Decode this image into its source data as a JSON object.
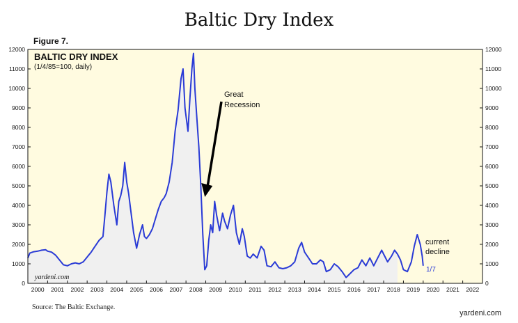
{
  "header": {
    "title": "Baltic Dry Index",
    "figure_label": "Figure 7."
  },
  "footer": {
    "source": "Source: The Baltic Exchange.",
    "brand": "yardeni.com"
  },
  "chart_data": {
    "type": "area",
    "title": "BALTIC DRY INDEX",
    "subtitle": "(1/4/85=100, daily)",
    "watermark": "yardeni.com",
    "ylim": [
      0,
      12000
    ],
    "yticks": [
      0,
      1000,
      2000,
      3000,
      4000,
      5000,
      6000,
      7000,
      8000,
      9000,
      10000,
      11000,
      12000
    ],
    "xlim": [
      2000,
      2023
    ],
    "xtick_labels": [
      "2000",
      "2001",
      "2002",
      "2003",
      "2004",
      "2005",
      "2006",
      "2007",
      "2008",
      "2009",
      "2010",
      "2011",
      "2012",
      "2013",
      "2014",
      "2015",
      "2016",
      "2017",
      "2018",
      "2019",
      "2020",
      "2021",
      "2022"
    ],
    "shaded_until_year": 2018.7,
    "colors": {
      "line": "#2a3bd6",
      "area_fill": "#f0f0f0",
      "background": "#fffbe0"
    },
    "series": [
      {
        "values": [
          [
            2000.0,
            1300
          ],
          [
            2000.1,
            1550
          ],
          [
            2000.3,
            1620
          ],
          [
            2000.5,
            1650
          ],
          [
            2000.7,
            1700
          ],
          [
            2000.9,
            1720
          ],
          [
            2001.0,
            1650
          ],
          [
            2001.2,
            1600
          ],
          [
            2001.4,
            1450
          ],
          [
            2001.6,
            1200
          ],
          [
            2001.8,
            950
          ],
          [
            2002.0,
            900
          ],
          [
            2002.2,
            1000
          ],
          [
            2002.4,
            1050
          ],
          [
            2002.6,
            1000
          ],
          [
            2002.8,
            1100
          ],
          [
            2003.0,
            1350
          ],
          [
            2003.2,
            1600
          ],
          [
            2003.4,
            1900
          ],
          [
            2003.6,
            2200
          ],
          [
            2003.8,
            2400
          ],
          [
            2003.9,
            3500
          ],
          [
            2004.0,
            4700
          ],
          [
            2004.1,
            5600
          ],
          [
            2004.2,
            5200
          ],
          [
            2004.35,
            4000
          ],
          [
            2004.5,
            3000
          ],
          [
            2004.6,
            4200
          ],
          [
            2004.7,
            4500
          ],
          [
            2004.8,
            5000
          ],
          [
            2004.9,
            6200
          ],
          [
            2005.0,
            5200
          ],
          [
            2005.1,
            4600
          ],
          [
            2005.2,
            3800
          ],
          [
            2005.35,
            2600
          ],
          [
            2005.5,
            1800
          ],
          [
            2005.65,
            2500
          ],
          [
            2005.8,
            3000
          ],
          [
            2005.9,
            2400
          ],
          [
            2006.0,
            2300
          ],
          [
            2006.15,
            2500
          ],
          [
            2006.3,
            2800
          ],
          [
            2006.45,
            3300
          ],
          [
            2006.6,
            3800
          ],
          [
            2006.75,
            4200
          ],
          [
            2006.9,
            4400
          ],
          [
            2007.0,
            4600
          ],
          [
            2007.15,
            5200
          ],
          [
            2007.3,
            6200
          ],
          [
            2007.45,
            7800
          ],
          [
            2007.6,
            8900
          ],
          [
            2007.75,
            10500
          ],
          [
            2007.85,
            11000
          ],
          [
            2007.95,
            9000
          ],
          [
            2008.1,
            7800
          ],
          [
            2008.2,
            9500
          ],
          [
            2008.3,
            11000
          ],
          [
            2008.38,
            11800
          ],
          [
            2008.45,
            10000
          ],
          [
            2008.55,
            8500
          ],
          [
            2008.65,
            7000
          ],
          [
            2008.75,
            5000
          ],
          [
            2008.85,
            2500
          ],
          [
            2008.95,
            700
          ],
          [
            2009.05,
            900
          ],
          [
            2009.15,
            2200
          ],
          [
            2009.25,
            3000
          ],
          [
            2009.35,
            2600
          ],
          [
            2009.45,
            4200
          ],
          [
            2009.55,
            3500
          ],
          [
            2009.7,
            2700
          ],
          [
            2009.85,
            3600
          ],
          [
            2009.95,
            3200
          ],
          [
            2010.1,
            2800
          ],
          [
            2010.25,
            3500
          ],
          [
            2010.4,
            4000
          ],
          [
            2010.55,
            2600
          ],
          [
            2010.7,
            2000
          ],
          [
            2010.85,
            2800
          ],
          [
            2010.95,
            2400
          ],
          [
            2011.1,
            1400
          ],
          [
            2011.25,
            1300
          ],
          [
            2011.4,
            1500
          ],
          [
            2011.6,
            1300
          ],
          [
            2011.8,
            1900
          ],
          [
            2011.95,
            1700
          ],
          [
            2012.1,
            900
          ],
          [
            2012.3,
            850
          ],
          [
            2012.5,
            1100
          ],
          [
            2012.7,
            800
          ],
          [
            2012.9,
            750
          ],
          [
            2013.1,
            800
          ],
          [
            2013.3,
            900
          ],
          [
            2013.5,
            1100
          ],
          [
            2013.7,
            1800
          ],
          [
            2013.85,
            2100
          ],
          [
            2014.0,
            1600
          ],
          [
            2014.2,
            1300
          ],
          [
            2014.4,
            1000
          ],
          [
            2014.6,
            1000
          ],
          [
            2014.8,
            1200
          ],
          [
            2014.95,
            1100
          ],
          [
            2015.1,
            600
          ],
          [
            2015.3,
            700
          ],
          [
            2015.5,
            1000
          ],
          [
            2015.7,
            850
          ],
          [
            2015.9,
            600
          ],
          [
            2016.1,
            300
          ],
          [
            2016.3,
            500
          ],
          [
            2016.5,
            700
          ],
          [
            2016.7,
            800
          ],
          [
            2016.9,
            1200
          ],
          [
            2017.1,
            900
          ],
          [
            2017.3,
            1300
          ],
          [
            2017.5,
            900
          ],
          [
            2017.7,
            1300
          ],
          [
            2017.9,
            1700
          ],
          [
            2018.0,
            1500
          ],
          [
            2018.2,
            1100
          ],
          [
            2018.4,
            1400
          ],
          [
            2018.55,
            1700
          ],
          [
            2018.7,
            1500
          ],
          [
            2018.85,
            1200
          ],
          [
            2019.0,
            700
          ],
          [
            2019.2,
            600
          ],
          [
            2019.4,
            1100
          ],
          [
            2019.55,
            1900
          ],
          [
            2019.7,
            2500
          ],
          [
            2019.85,
            2000
          ],
          [
            2019.95,
            1400
          ],
          [
            2020.0,
            900
          ]
        ]
      }
    ],
    "annotations": [
      {
        "text_lines": [
          "Great",
          "Recession"
        ],
        "at_x": 2008.85,
        "at_y": 4500
      },
      {
        "text_lines": [
          "current",
          "decline"
        ],
        "at_x": 2020.0,
        "at_y": 1100
      },
      {
        "text_lines": [
          "1/7"
        ],
        "at_x": 2020.0,
        "at_y": 900
      }
    ]
  }
}
